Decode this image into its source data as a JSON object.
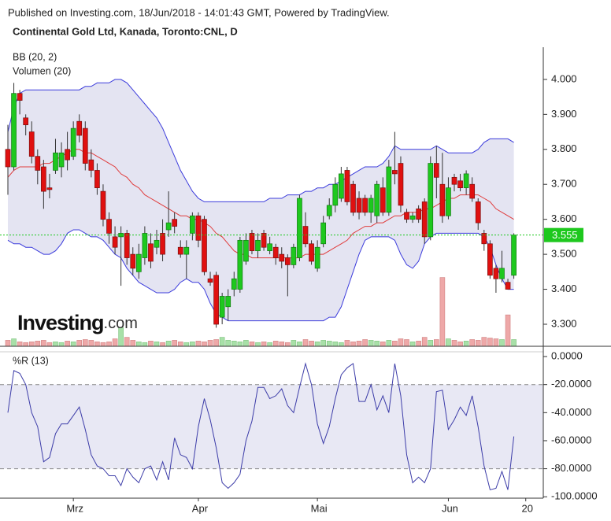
{
  "header": {
    "published": "Published on Investing.com, 18/Jun/2018 - 14:01:43 GMT, Powered by TradingView."
  },
  "logo": {
    "main": "Investing",
    "suffix": ".com"
  },
  "chart_data": [
    {
      "type": "candlestick",
      "title": "Continental Gold Ltd, Kanada, Toronto:CNL, D",
      "categories": [
        null,
        null,
        null,
        null,
        null,
        null,
        null,
        null,
        null,
        null,
        null,
        "Mrz",
        null,
        null,
        null,
        null,
        null,
        null,
        null,
        null,
        null,
        null,
        null,
        null,
        null,
        null,
        null,
        null,
        null,
        null,
        null,
        null,
        "Apr",
        null,
        null,
        null,
        null,
        null,
        null,
        null,
        null,
        null,
        null,
        null,
        null,
        null,
        null,
        null,
        null,
        null,
        null,
        null,
        "Mai",
        null,
        null,
        null,
        null,
        null,
        null,
        null,
        null,
        null,
        null,
        null,
        null,
        null,
        null,
        null,
        null,
        null,
        null,
        null,
        null,
        null,
        "Jun",
        null,
        null,
        null,
        null,
        null,
        null,
        null,
        null,
        null,
        null,
        null,
        null,
        "20"
      ],
      "open": [
        3.8,
        3.75,
        3.96,
        3.89,
        3.85,
        3.78,
        3.75,
        3.69,
        3.74,
        3.75,
        3.8,
        3.78,
        3.88,
        3.86,
        3.77,
        3.74,
        3.68,
        3.6,
        3.55,
        3.55,
        3.56,
        3.5,
        3.45,
        3.49,
        3.53,
        3.52,
        3.56,
        3.57,
        3.6,
        3.52,
        3.5,
        3.56,
        3.61,
        3.6,
        3.43,
        3.44,
        3.32,
        3.35,
        3.4,
        3.4,
        3.48,
        3.56,
        3.51,
        3.56,
        3.51,
        3.52,
        3.5,
        3.49,
        3.47,
        3.49,
        3.58,
        3.53,
        3.46,
        3.53,
        3.61,
        3.64,
        3.66,
        3.74,
        3.7,
        3.66,
        3.66,
        3.62,
        3.61,
        3.69,
        3.62,
        3.74,
        3.76,
        3.62,
        3.6,
        3.63,
        3.65,
        3.55,
        3.76,
        3.7,
        3.61,
        3.72,
        3.71,
        3.69,
        3.7,
        3.65,
        3.56,
        3.53,
        3.46,
        3.43,
        3.42,
        3.44,
        null,
        null
      ],
      "high": [
        3.87,
        3.99,
        3.97,
        3.9,
        3.88,
        3.8,
        3.77,
        3.73,
        3.83,
        3.82,
        3.85,
        3.88,
        3.9,
        3.88,
        3.8,
        3.76,
        3.7,
        3.62,
        3.58,
        3.58,
        3.57,
        3.52,
        3.53,
        3.58,
        3.56,
        3.57,
        3.6,
        3.68,
        3.62,
        3.54,
        3.54,
        3.62,
        3.62,
        3.61,
        3.45,
        3.45,
        3.39,
        3.4,
        3.45,
        3.55,
        3.56,
        3.57,
        3.56,
        3.57,
        3.55,
        3.53,
        3.52,
        3.5,
        3.53,
        3.67,
        3.62,
        3.54,
        3.54,
        3.61,
        3.66,
        3.72,
        3.75,
        3.75,
        3.71,
        3.68,
        3.67,
        3.67,
        3.71,
        3.72,
        3.77,
        3.85,
        3.78,
        3.63,
        3.62,
        3.64,
        3.66,
        3.78,
        3.81,
        3.79,
        3.72,
        3.73,
        3.73,
        3.74,
        3.72,
        3.66,
        3.57,
        3.54,
        3.47,
        3.51,
        3.43,
        3.56,
        null,
        null
      ],
      "low": [
        3.67,
        3.74,
        3.9,
        3.84,
        3.76,
        3.7,
        3.63,
        3.66,
        3.73,
        3.72,
        3.74,
        3.77,
        3.82,
        3.74,
        3.72,
        3.67,
        3.58,
        3.53,
        3.5,
        3.41,
        3.47,
        3.44,
        3.43,
        3.47,
        3.46,
        3.5,
        3.48,
        3.55,
        3.56,
        3.49,
        3.43,
        3.54,
        3.52,
        3.44,
        3.41,
        3.29,
        3.3,
        3.31,
        3.38,
        3.39,
        3.47,
        3.5,
        3.49,
        3.51,
        3.5,
        3.47,
        3.46,
        3.38,
        3.46,
        3.48,
        3.52,
        3.47,
        3.45,
        3.52,
        3.6,
        3.62,
        3.65,
        3.64,
        3.61,
        3.6,
        3.61,
        3.59,
        3.59,
        3.61,
        3.61,
        3.7,
        3.62,
        3.59,
        3.59,
        3.59,
        3.53,
        3.54,
        3.66,
        3.59,
        3.6,
        3.68,
        3.68,
        3.67,
        3.65,
        3.57,
        3.51,
        3.43,
        3.39,
        3.42,
        3.4,
        3.43,
        null,
        null
      ],
      "close": [
        3.75,
        3.96,
        3.94,
        3.87,
        3.78,
        3.74,
        3.68,
        3.685,
        3.79,
        3.79,
        3.77,
        3.86,
        3.84,
        3.76,
        3.74,
        3.69,
        3.6,
        3.56,
        3.52,
        3.56,
        3.49,
        3.46,
        3.5,
        3.56,
        3.48,
        3.54,
        3.5,
        3.59,
        3.58,
        3.5,
        3.52,
        3.61,
        3.54,
        3.45,
        3.42,
        3.3,
        3.38,
        3.38,
        3.43,
        3.54,
        3.54,
        3.51,
        3.54,
        3.52,
        3.53,
        3.49,
        3.48,
        3.47,
        3.52,
        3.66,
        3.53,
        3.48,
        3.52,
        3.59,
        3.64,
        3.7,
        3.73,
        3.65,
        3.62,
        3.62,
        3.62,
        3.66,
        3.7,
        3.62,
        3.75,
        3.73,
        3.64,
        3.6,
        3.61,
        3.6,
        3.55,
        3.76,
        3.72,
        3.61,
        3.69,
        3.7,
        3.69,
        3.73,
        3.66,
        3.59,
        3.53,
        3.44,
        3.43,
        3.46,
        3.4,
        3.555,
        null,
        null
      ],
      "up_color": "#1ec81e",
      "down_color": "#e01010",
      "bollinger": {
        "name": "BB (20, 2)",
        "color": "#3c3cdc",
        "middle_color": "#e03c3c",
        "fill": "#e4e4f2",
        "upper": [
          3.85,
          3.92,
          3.96,
          3.97,
          3.97,
          3.97,
          3.97,
          3.97,
          3.97,
          3.97,
          3.97,
          3.97,
          3.97,
          3.98,
          3.98,
          3.99,
          3.99,
          3.99,
          4.0,
          4.0,
          3.99,
          3.97,
          3.95,
          3.93,
          3.91,
          3.89,
          3.86,
          3.82,
          3.78,
          3.74,
          3.71,
          3.68,
          3.66,
          3.65,
          3.65,
          3.65,
          3.65,
          3.65,
          3.65,
          3.65,
          3.65,
          3.65,
          3.65,
          3.65,
          3.66,
          3.66,
          3.66,
          3.67,
          3.67,
          3.67,
          3.68,
          3.68,
          3.69,
          3.69,
          3.7,
          3.7,
          3.71,
          3.72,
          3.73,
          3.74,
          3.75,
          3.75,
          3.75,
          3.76,
          3.78,
          3.81,
          3.8,
          3.8,
          3.8,
          3.8,
          3.8,
          3.8,
          3.81,
          3.8,
          3.79,
          3.79,
          3.79,
          3.79,
          3.79,
          3.8,
          3.82,
          3.83,
          3.83,
          3.83,
          3.83,
          3.82,
          null,
          null
        ],
        "middle": [
          3.72,
          3.74,
          3.75,
          3.75,
          3.75,
          3.75,
          3.76,
          3.76,
          3.77,
          3.78,
          3.79,
          3.8,
          3.8,
          3.79,
          3.79,
          3.78,
          3.77,
          3.76,
          3.75,
          3.73,
          3.72,
          3.7,
          3.69,
          3.67,
          3.66,
          3.65,
          3.64,
          3.63,
          3.62,
          3.61,
          3.61,
          3.6,
          3.6,
          3.59,
          3.58,
          3.56,
          3.55,
          3.53,
          3.51,
          3.5,
          3.5,
          3.49,
          3.49,
          3.49,
          3.49,
          3.49,
          3.49,
          3.49,
          3.49,
          3.49,
          3.5,
          3.5,
          3.5,
          3.5,
          3.51,
          3.52,
          3.53,
          3.54,
          3.56,
          3.57,
          3.58,
          3.58,
          3.59,
          3.59,
          3.6,
          3.61,
          3.61,
          3.62,
          3.62,
          3.62,
          3.63,
          3.63,
          3.64,
          3.65,
          3.66,
          3.66,
          3.67,
          3.67,
          3.67,
          3.67,
          3.66,
          3.65,
          3.63,
          3.62,
          3.61,
          3.6,
          null,
          null
        ],
        "lower": [
          3.54,
          3.53,
          3.53,
          3.52,
          3.52,
          3.51,
          3.5,
          3.5,
          3.51,
          3.53,
          3.56,
          3.57,
          3.57,
          3.56,
          3.55,
          3.55,
          3.54,
          3.52,
          3.5,
          3.49,
          3.46,
          3.44,
          3.42,
          3.41,
          3.4,
          3.39,
          3.39,
          3.39,
          3.4,
          3.42,
          3.43,
          3.42,
          3.42,
          3.4,
          3.36,
          3.33,
          3.32,
          3.31,
          3.31,
          3.31,
          3.31,
          3.31,
          3.31,
          3.31,
          3.31,
          3.31,
          3.31,
          3.31,
          3.31,
          3.31,
          3.31,
          3.31,
          3.31,
          3.31,
          3.32,
          3.32,
          3.35,
          3.4,
          3.45,
          3.5,
          3.54,
          3.55,
          3.55,
          3.55,
          3.55,
          3.54,
          3.5,
          3.47,
          3.46,
          3.48,
          3.53,
          3.55,
          3.56,
          3.56,
          3.56,
          3.56,
          3.56,
          3.56,
          3.56,
          3.56,
          3.55,
          3.52,
          3.47,
          3.43,
          3.4,
          3.4,
          null,
          null
        ]
      },
      "volume": {
        "name": "Volumen (20)",
        "up_color": "#a8e0a8",
        "down_color": "#eea8a8",
        "ylim": [
          0,
          100
        ],
        "values": [
          8,
          10,
          6,
          5,
          6,
          7,
          8,
          5,
          6,
          5,
          7,
          6,
          8,
          9,
          8,
          6,
          5,
          6,
          10,
          25,
          12,
          8,
          6,
          5,
          7,
          6,
          5,
          7,
          8,
          6,
          5,
          6,
          7,
          6,
          8,
          9,
          12,
          8,
          7,
          6,
          8,
          6,
          5,
          6,
          5,
          7,
          6,
          5,
          8,
          6,
          9,
          7,
          6,
          8,
          7,
          6,
          5,
          8,
          6,
          7,
          9,
          8,
          7,
          6,
          8,
          7,
          10,
          9,
          6,
          7,
          12,
          8,
          9,
          92,
          10,
          8,
          6,
          7,
          9,
          8,
          12,
          11,
          10,
          9,
          42,
          9,
          null,
          null
        ]
      },
      "last_price": 3.555,
      "last_price_color": "#1ec81e",
      "ylim": [
        3.237,
        4.092
      ],
      "yticks": [
        {
          "value": 4.0,
          "label": "4.000"
        },
        {
          "value": 3.9,
          "label": "3.900"
        },
        {
          "value": 3.8,
          "label": "3.800"
        },
        {
          "value": 3.7,
          "label": "3.700"
        },
        {
          "value": 3.6,
          "label": "3.600"
        },
        {
          "value": 3.5,
          "label": "3.500"
        },
        {
          "value": 3.4,
          "label": "3.400"
        },
        {
          "value": 3.3,
          "label": "3.300"
        }
      ]
    },
    {
      "type": "line",
      "name": "%R (13)",
      "color": "#3c3ca8",
      "band_fill": "#e8e8f4",
      "bands": [
        -20,
        -80
      ],
      "values": [
        -40,
        -10,
        -12,
        -20,
        -40,
        -50,
        -75,
        -72,
        -55,
        -48,
        -48,
        -42,
        -36,
        -52,
        -70,
        -78,
        -80,
        -85,
        -85,
        -92,
        -80,
        -86,
        -90,
        -80,
        -78,
        -88,
        -75,
        -88,
        -58,
        -70,
        -72,
        -80,
        -50,
        -30,
        -45,
        -65,
        -90,
        -94,
        -90,
        -84,
        -60,
        -46,
        -22,
        -22,
        -30,
        -28,
        -23,
        -35,
        -40,
        -22,
        -5,
        -20,
        -48,
        -62,
        -50,
        -30,
        -13,
        -8,
        -5,
        -32,
        -32,
        -20,
        -38,
        -28,
        -40,
        -5,
        -28,
        -70,
        -90,
        -86,
        -90,
        -80,
        -25,
        -24,
        -52,
        -45,
        -36,
        -42,
        -28,
        -50,
        -78,
        -95,
        -94,
        -82,
        -95,
        -57,
        null,
        null
      ],
      "ylim": [
        -101,
        3.4
      ],
      "yticks": [
        {
          "value": 0,
          "label": "0.0000"
        },
        {
          "value": -20,
          "label": "-20.0000"
        },
        {
          "value": -40,
          "label": "-40.0000"
        },
        {
          "value": -60,
          "label": "-60.0000"
        },
        {
          "value": -80,
          "label": "-80.0000"
        },
        {
          "value": -100,
          "label": "-100.0000"
        }
      ]
    }
  ]
}
